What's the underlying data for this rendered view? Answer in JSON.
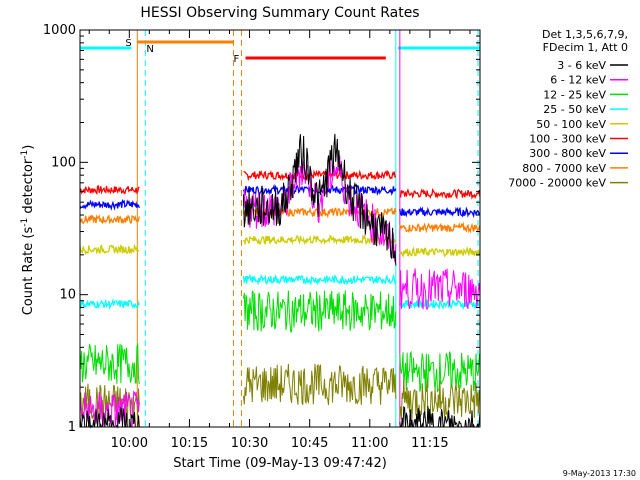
{
  "chart_data": {
    "type": "line",
    "title": "HESSI Observing Summary Count Rates",
    "xlabel": "Start Time (09-May-13 09:47:42)",
    "ylabel_main": "Count Rate (s",
    "ylabel_sup1": "-1",
    "ylabel_mid": " detector",
    "ylabel_sup2": "-1",
    "ylabel_end": ")",
    "y_scale": "log",
    "ylim": [
      1,
      1000
    ],
    "xlim": [
      "09:47:42",
      "11:27:30"
    ],
    "x_ticks": [
      "10:00",
      "10:15",
      "10:30",
      "10:45",
      "11:00",
      "11:15"
    ],
    "y_ticks": [
      "1",
      "10",
      "100",
      "1000"
    ],
    "grid": false,
    "legend_position": "top-right",
    "legend_header": [
      "Det 1,3,5,6,7,9,",
      "FDecim 1, Att 0"
    ],
    "series": [
      {
        "name": "3 - 6 keV",
        "color": "#000000"
      },
      {
        "name": "6 - 12 keV",
        "color": "#ff00ff"
      },
      {
        "name": "12 - 25 keV",
        "color": "#00dd00"
      },
      {
        "name": "25 - 50 keV",
        "color": "#00ffff"
      },
      {
        "name": "50 - 100 keV",
        "color": "#cccc00"
      },
      {
        "name": "100 - 300 keV",
        "color": "#ff0000"
      },
      {
        "name": "300 - 800 keV",
        "color": "#0000ff"
      },
      {
        "name": "800 - 7000 keV",
        "color": "#ff7f00"
      },
      {
        "name": "7000 - 20000 keV",
        "color": "#808000"
      }
    ],
    "segments_observed": [
      [
        "09:47:42",
        "10:02:30"
      ],
      [
        "10:28:30",
        "11:06:30"
      ],
      [
        "11:07:30",
        "11:27:30"
      ]
    ],
    "series_levels": [
      {
        "name": "100 - 300 keV",
        "before": 62,
        "during": 80,
        "after": 58
      },
      {
        "name": "300 - 800 keV",
        "before": 48,
        "during": 62,
        "after": 42
      },
      {
        "name": "800 - 7000 keV",
        "before": 37,
        "during": 42,
        "after": 32
      },
      {
        "name": "50 - 100 keV",
        "before": 22,
        "during": 26,
        "after": 21
      },
      {
        "name": "25 - 50 keV",
        "before": 8.5,
        "during": 13,
        "after": 8.5
      },
      {
        "name": "12 - 25 keV",
        "before": 3.0,
        "during": 7.5,
        "after": 2.6
      },
      {
        "name": "7000 - 20000 keV",
        "before": 1.5,
        "during": 2.1,
        "after": 1.6
      },
      {
        "name": "6 - 12 keV",
        "before": 1.3,
        "during": 45,
        "after": 11
      },
      {
        "name": "3 - 6 keV",
        "before": 1.0,
        "during": 45,
        "after": 1.0
      }
    ],
    "peaks_3_6_keV": [
      {
        "time": "10:43:00",
        "value": 115
      },
      {
        "time": "10:51:30",
        "value": 115
      }
    ],
    "flag_bars": [
      {
        "label": "S",
        "start": "10:02:00",
        "end": "10:26:00",
        "color": "#ff7f00"
      },
      {
        "label": "N",
        "start": "10:00:30",
        "end": "10:04:00",
        "color": "#00ffff"
      },
      {
        "label": "F",
        "start": "10:29:00",
        "end": "11:04:00",
        "color": "#ff0000"
      }
    ],
    "night_bars": [
      {
        "start": "09:47:42",
        "end": "10:00:30",
        "color": "#00ffff"
      },
      {
        "start": "11:07:00",
        "end": "11:27:30",
        "color": "#00ffff"
      }
    ],
    "vertical_markers": [
      {
        "time": "10:02:00",
        "color": "#ff7f00",
        "style": "solid"
      },
      {
        "time": "10:04:00",
        "color": "#00ffff",
        "style": "dashed"
      },
      {
        "time": "10:26:00",
        "color": "#ff7f00",
        "style": "dashed"
      },
      {
        "time": "10:28:00",
        "color": "#ff7f00",
        "style": "dashed"
      },
      {
        "time": "11:06:30",
        "color": "#00ffff",
        "style": "solid"
      },
      {
        "time": "11:07:30",
        "color": "#ff00ff",
        "style": "solid"
      },
      {
        "time": "11:27:00",
        "color": "#00ffff",
        "style": "dashed"
      }
    ],
    "footer_date": "9-May-2013 17:30"
  }
}
